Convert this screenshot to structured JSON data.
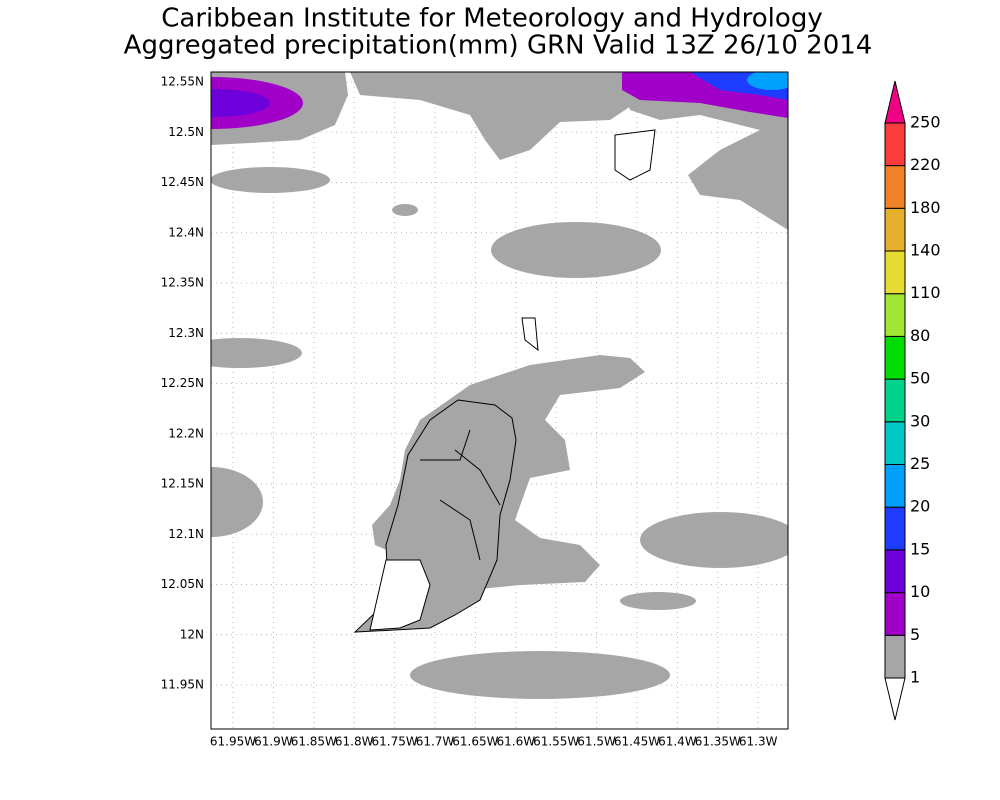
{
  "header": {
    "title": "Caribbean Institute for Meteorology and Hydrology",
    "subtitle": "Aggregated precipitation(mm) GRN Valid 13Z 26/10 2014"
  },
  "map": {
    "lat_labels": [
      "12.55N",
      "12.5N",
      "12.45N",
      "12.4N",
      "12.35N",
      "12.3N",
      "12.25N",
      "12.2N",
      "12.15N",
      "12.1N",
      "12.05N",
      "12N",
      "11.95N"
    ],
    "lon_labels": [
      "61.95W",
      "61.9W",
      "61.85W",
      "61.8W",
      "61.75W",
      "61.7W",
      "61.65W",
      "61.6W",
      "61.55W",
      "61.5W",
      "61.45W",
      "61.4W",
      "61.35W",
      "61.3W"
    ]
  },
  "legend": {
    "labels": [
      1,
      5,
      10,
      15,
      20,
      25,
      30,
      50,
      80,
      110,
      140,
      180,
      220,
      250
    ],
    "colors": [
      "#ffffff",
      "#a6a6a6",
      "#a000c8",
      "#6e00dc",
      "#1e3cff",
      "#00a0ff",
      "#00c8c8",
      "#00d28c",
      "#00dc00",
      "#a0e632",
      "#e6dc32",
      "#e6af2d",
      "#f08228",
      "#fa3c3c",
      "#f00082"
    ]
  }
}
